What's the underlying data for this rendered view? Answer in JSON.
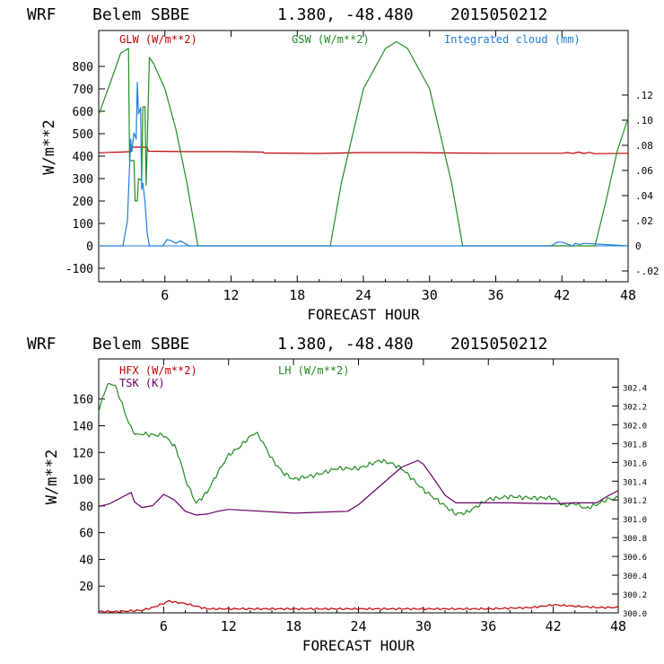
{
  "chart_data": [
    {
      "type": "line",
      "header": {
        "model": "WRF",
        "station": "Belem SBBE",
        "coords": "1.380, -48.480",
        "run": "2015050212"
      },
      "xlabel": "FORECAST HOUR",
      "ylabel": "W/m**2",
      "xlim": [
        0,
        48
      ],
      "xticks": [
        6,
        12,
        18,
        24,
        30,
        36,
        42,
        48
      ],
      "ylim": [
        -160,
        960
      ],
      "yticks": [
        -100,
        0,
        100,
        200,
        300,
        400,
        500,
        600,
        700,
        800
      ],
      "y2lim": [
        -0.0286,
        0.1714
      ],
      "y2ticks": [
        -0.02,
        0,
        0.02,
        0.04,
        0.06,
        0.08,
        0.1,
        0.12
      ],
      "y2ticklabels": [
        "-.02",
        "0",
        ".02",
        ".04",
        ".06",
        ".08",
        ".10",
        ".12"
      ],
      "series": [
        {
          "name": "GLW (W/m**2)",
          "color": "#c00000",
          "axis": "left",
          "x": [
            0,
            1,
            2,
            2.9,
            3,
            4.4,
            4.5,
            8,
            12,
            14.9,
            15,
            20,
            24,
            28,
            32,
            36,
            40,
            42,
            42.5,
            43,
            43.5,
            44,
            44.5,
            45,
            48
          ],
          "y": [
            415,
            417,
            418,
            420,
            440,
            440,
            422,
            420,
            420,
            418,
            414,
            412,
            416,
            416,
            414,
            413,
            413,
            413,
            416,
            412,
            418,
            412,
            417,
            411,
            413
          ]
        },
        {
          "name": "GSW (W/m**2)",
          "color": "#228b22",
          "axis": "left",
          "x": [
            0,
            1,
            2,
            2.7,
            2.8,
            3.2,
            3.3,
            3.5,
            3.6,
            3.9,
            4.0,
            4.2,
            4.3,
            4.6,
            5,
            6,
            7,
            8,
            9,
            21,
            22,
            24,
            26,
            27,
            28,
            30,
            32,
            33,
            45,
            46,
            47,
            48
          ],
          "y": [
            585,
            720,
            860,
            880,
            380,
            380,
            200,
            200,
            300,
            290,
            620,
            620,
            270,
            840,
            810,
            700,
            520,
            280,
            0,
            0,
            280,
            700,
            880,
            910,
            880,
            700,
            280,
            0,
            0,
            200,
            420,
            570
          ]
        },
        {
          "name": "Integrated cloud (mm)",
          "color": "#1e7fd8",
          "axis": "right",
          "x": [
            0,
            2.2,
            2.6,
            2.9,
            3.0,
            3.2,
            3.4,
            3.5,
            3.6,
            3.8,
            3.9,
            4.0,
            4.2,
            4.4,
            4.6,
            5,
            5.8,
            6.2,
            6.6,
            7,
            7.4,
            7.8,
            8.2,
            41,
            41.6,
            42,
            42.6,
            43,
            43.2,
            43.6,
            44,
            48
          ],
          "y": [
            0,
            0,
            0.02,
            0.085,
            0.075,
            0.09,
            0.085,
            0.13,
            0.105,
            0.11,
            0.045,
            0.05,
            0.035,
            0.01,
            0,
            0,
            0,
            0.005,
            0.004,
            0.002,
            0.004,
            0.002,
            0,
            0,
            0.003,
            0.003,
            0.001,
            0,
            0.002,
            0.001,
            0.002,
            0
          ]
        }
      ],
      "legend": [
        "GLW (W/m**2)",
        "GSW (W/m**2)",
        "Integrated cloud (mm)"
      ]
    },
    {
      "type": "line",
      "header": {
        "model": "WRF",
        "station": "Belem SBBE",
        "coords": "1.380, -48.480",
        "run": "2015050212"
      },
      "xlabel": "FORECAST HOUR",
      "ylabel": "W/m**2",
      "xlim": [
        0,
        48
      ],
      "xticks": [
        6,
        12,
        18,
        24,
        30,
        36,
        42,
        48
      ],
      "ylim": [
        0,
        190
      ],
      "yticks": [
        20,
        40,
        60,
        80,
        100,
        120,
        140,
        160
      ],
      "y2lim": [
        300.0,
        302.7
      ],
      "y2ticks": [
        300.0,
        300.2,
        300.4,
        300.6,
        300.8,
        301.0,
        301.2,
        301.4,
        301.6,
        301.8,
        302.0,
        302.2,
        302.4
      ],
      "y2ticklabels": [
        "300.0",
        "300.2",
        "300.4",
        "300.6",
        "300.8",
        "301.0",
        "301.2",
        "301.4",
        "301.6",
        "301.8",
        "302.0",
        "302.2",
        "302.4"
      ],
      "series": [
        {
          "name": "HFX (W/m**2)",
          "color": "#c00000",
          "axis": "left",
          "x": [
            0,
            2,
            4,
            5,
            6,
            6.5,
            7,
            8,
            9,
            10,
            12,
            18,
            24,
            30,
            36,
            40,
            42,
            44,
            46,
            48
          ],
          "y": [
            1,
            1,
            2,
            4,
            7,
            9,
            8,
            7,
            5,
            3,
            3,
            3,
            3,
            3,
            3,
            4,
            6,
            5,
            4,
            4
          ],
          "jitter": 0.8
        },
        {
          "name": "LH (W/m**2)",
          "color": "#228b22",
          "axis": "left",
          "x": [
            0,
            0.5,
            1,
            1.5,
            2,
            2.5,
            3,
            3.5,
            4,
            5,
            6,
            7,
            7.5,
            8,
            9,
            10,
            11,
            12,
            13,
            14,
            14.5,
            15,
            16,
            17,
            18,
            20,
            22,
            24,
            26,
            27,
            28,
            29,
            30,
            31,
            32,
            33,
            34,
            35,
            36,
            38,
            40,
            42,
            43,
            44,
            45,
            46,
            47,
            48
          ],
          "y": [
            150,
            165,
            172,
            170,
            160,
            148,
            138,
            133,
            134,
            133,
            133,
            125,
            115,
            100,
            82,
            90,
            105,
            118,
            124,
            132,
            135,
            130,
            115,
            105,
            100,
            103,
            108,
            108,
            114,
            112,
            108,
            100,
            92,
            86,
            80,
            74,
            75,
            80,
            85,
            87,
            86,
            86,
            80,
            82,
            78,
            81,
            85,
            86
          ],
          "jitter": 1.8
        },
        {
          "name": "TSK (K)",
          "color": "#660066",
          "axis": "right",
          "x": [
            0,
            1,
            2,
            3,
            3.3,
            4,
            5,
            6,
            7,
            8,
            9,
            10,
            11,
            12,
            18,
            23,
            24,
            26,
            28,
            29.5,
            30,
            31,
            32,
            33,
            34,
            38,
            42,
            44,
            46,
            47,
            48
          ],
          "y": [
            301.13,
            301.16,
            301.22,
            301.28,
            301.18,
            301.12,
            301.14,
            301.26,
            301.2,
            301.08,
            301.04,
            301.05,
            301.08,
            301.1,
            301.06,
            301.08,
            301.15,
            301.35,
            301.55,
            301.62,
            301.58,
            301.42,
            301.25,
            301.17,
            301.17,
            301.17,
            301.16,
            301.17,
            301.17,
            301.24,
            301.3
          ]
        }
      ],
      "legend": [
        "HFX (W/m**2)",
        "LH (W/m**2)",
        "TSK (K)"
      ]
    }
  ]
}
